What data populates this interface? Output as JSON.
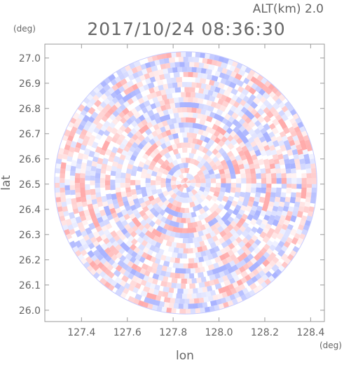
{
  "header": {
    "altitude_label": "ALT(km) 2.0",
    "datetime": "2017/10/24 08:36:30"
  },
  "chart_data": {
    "type": "heatmap",
    "title": "",
    "xlabel": "lon",
    "ylabel": "lat",
    "x_unit": "(deg)",
    "y_unit": "(deg)",
    "xlim": [
      127.24,
      128.46
    ],
    "ylim": [
      25.955,
      27.055
    ],
    "x_ticks": [
      127.4,
      127.6,
      127.8,
      128.0,
      128.2,
      128.4
    ],
    "x_tick_labels": [
      "127.4",
      "127.6",
      "127.8",
      "128.0",
      "128.2",
      "128.4"
    ],
    "y_ticks": [
      26.0,
      26.1,
      26.2,
      26.3,
      26.4,
      26.5,
      26.6,
      26.7,
      26.8,
      26.9,
      27.0
    ],
    "y_tick_labels": [
      "26.0",
      "26.1",
      "26.2",
      "26.3",
      "26.4",
      "26.5",
      "26.6",
      "26.7",
      "26.8",
      "26.9",
      "27.0"
    ],
    "radar_center": {
      "lon": 127.855,
      "lat": 26.505
    },
    "radar_coverage_radius_deg_lat": 0.52,
    "grid": false,
    "colormap": {
      "negative": "#9aa6ff",
      "zero": "#ffffff",
      "positive": "#ff9c9c"
    }
  }
}
